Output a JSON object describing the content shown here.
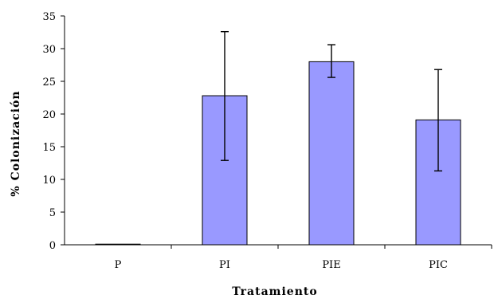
{
  "chart_data": {
    "type": "bar",
    "categories": [
      "P",
      "PI",
      "PIE",
      "PIC"
    ],
    "values": [
      0,
      22.8,
      28.0,
      19.1
    ],
    "error_upper": [
      0,
      32.6,
      30.6,
      26.8
    ],
    "error_lower": [
      0,
      12.9,
      25.6,
      11.3
    ],
    "xlabel": "Tratamiento",
    "ylabel": "% Colonización",
    "ylim": [
      0,
      35
    ],
    "yticks": [
      0,
      5,
      10,
      15,
      20,
      25,
      30,
      35
    ],
    "grid": false,
    "bar_color": "#9999ff"
  }
}
